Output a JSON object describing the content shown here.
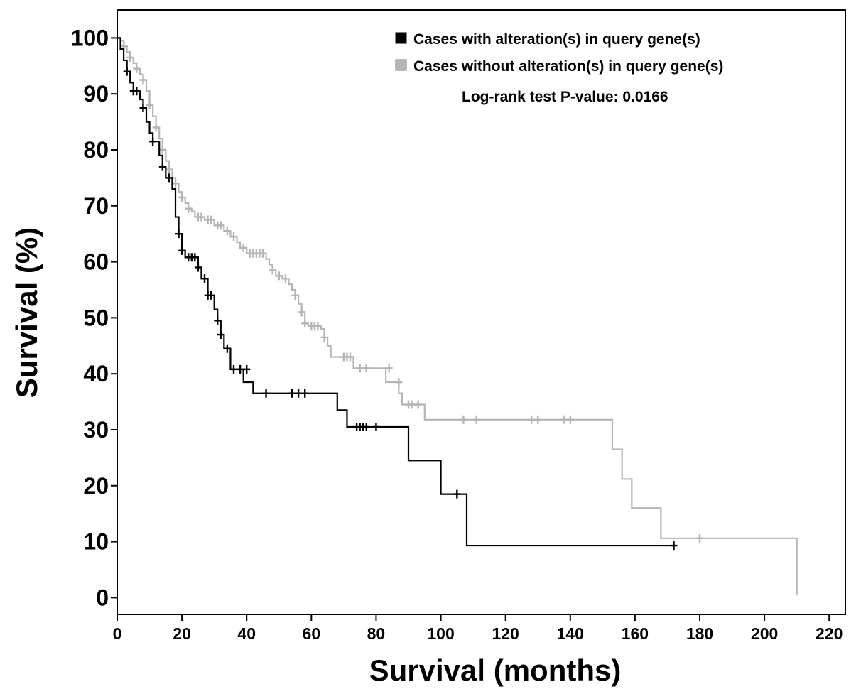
{
  "chart_data": {
    "type": "line",
    "subtype": "kaplan-meier",
    "xlabel": "Survival (months)",
    "ylabel": "Survival (%)",
    "xlim": [
      0,
      225
    ],
    "ylim": [
      -3,
      105
    ],
    "xticks": [
      0,
      20,
      40,
      60,
      80,
      100,
      120,
      140,
      160,
      180,
      200,
      220
    ],
    "yticks": [
      0,
      10,
      20,
      30,
      40,
      50,
      60,
      70,
      80,
      90,
      100
    ],
    "grid": false,
    "legend_position": "top-right",
    "annotation": "Log-rank test P-value: 0.0166",
    "series": [
      {
        "name": "Cases with alteration(s) in query gene(s)",
        "color": "#000000",
        "steps": [
          [
            0,
            100
          ],
          [
            1,
            98
          ],
          [
            2,
            96
          ],
          [
            3,
            94
          ],
          [
            4,
            92
          ],
          [
            5,
            90.5
          ],
          [
            7,
            89
          ],
          [
            8,
            87.5
          ],
          [
            9,
            85
          ],
          [
            10,
            83
          ],
          [
            11,
            81.5
          ],
          [
            13,
            79
          ],
          [
            14,
            77
          ],
          [
            15,
            75
          ],
          [
            17,
            73
          ],
          [
            18,
            68
          ],
          [
            19,
            65
          ],
          [
            20,
            62
          ],
          [
            21,
            60.8
          ],
          [
            25,
            59
          ],
          [
            26,
            57
          ],
          [
            28,
            54
          ],
          [
            30,
            51.5
          ],
          [
            31,
            49.5
          ],
          [
            32,
            47
          ],
          [
            33,
            44.5
          ],
          [
            35,
            40.8
          ],
          [
            39,
            38.5
          ],
          [
            42,
            36.5
          ],
          [
            68,
            33.5
          ],
          [
            71,
            30.5
          ],
          [
            90,
            24.5
          ],
          [
            100,
            18.5
          ],
          [
            108,
            9.3
          ]
        ],
        "end_x": 172,
        "censored": [
          [
            3,
            94
          ],
          [
            5,
            90.5
          ],
          [
            6,
            90.5
          ],
          [
            8,
            87.5
          ],
          [
            11,
            81.5
          ],
          [
            14,
            77
          ],
          [
            16,
            75
          ],
          [
            19,
            65
          ],
          [
            20,
            62
          ],
          [
            22,
            60.8
          ],
          [
            23,
            60.8
          ],
          [
            24,
            60.8
          ],
          [
            25,
            59
          ],
          [
            27,
            57
          ],
          [
            28,
            54
          ],
          [
            29,
            54
          ],
          [
            31,
            49.5
          ],
          [
            32,
            47
          ],
          [
            34,
            44.5
          ],
          [
            36,
            40.8
          ],
          [
            38,
            40.8
          ],
          [
            40,
            40.8
          ],
          [
            46,
            36.5
          ],
          [
            54,
            36.5
          ],
          [
            56,
            36.5
          ],
          [
            58,
            36.5
          ],
          [
            74,
            30.5
          ],
          [
            75,
            30.5
          ],
          [
            76,
            30.5
          ],
          [
            77,
            30.5
          ],
          [
            80,
            30.5
          ],
          [
            105,
            18.5
          ],
          [
            172,
            9.3
          ]
        ]
      },
      {
        "name": "Cases without alteration(s) in query gene(s)",
        "color": "#b5b5b5",
        "steps": [
          [
            0,
            100
          ],
          [
            1,
            99.5
          ],
          [
            2,
            98.5
          ],
          [
            3,
            97.5
          ],
          [
            4,
            96.5
          ],
          [
            5,
            95.5
          ],
          [
            6,
            94.5
          ],
          [
            7,
            93.5
          ],
          [
            8,
            92.5
          ],
          [
            9,
            90.5
          ],
          [
            10,
            88
          ],
          [
            11,
            86
          ],
          [
            12,
            84
          ],
          [
            13,
            82
          ],
          [
            14,
            80
          ],
          [
            15,
            78
          ],
          [
            16,
            76.5
          ],
          [
            17,
            75
          ],
          [
            18,
            74
          ],
          [
            19,
            72.5
          ],
          [
            20,
            71.5
          ],
          [
            21,
            70.5
          ],
          [
            22,
            69.5
          ],
          [
            23,
            69
          ],
          [
            24,
            68
          ],
          [
            27,
            67.5
          ],
          [
            30,
            66.5
          ],
          [
            33,
            65.5
          ],
          [
            35,
            64.5
          ],
          [
            37,
            63.5
          ],
          [
            38,
            62.5
          ],
          [
            40,
            61.5
          ],
          [
            46,
            60.5
          ],
          [
            47,
            59.5
          ],
          [
            48,
            58.5
          ],
          [
            49,
            57.5
          ],
          [
            51,
            57
          ],
          [
            53,
            56
          ],
          [
            54,
            55
          ],
          [
            55,
            54
          ],
          [
            56,
            52.5
          ],
          [
            57,
            51
          ],
          [
            58,
            49
          ],
          [
            59,
            48.5
          ],
          [
            63,
            48
          ],
          [
            64,
            46.5
          ],
          [
            65,
            45
          ],
          [
            66,
            43
          ],
          [
            73,
            41
          ],
          [
            83,
            38.5
          ],
          [
            87,
            36.5
          ],
          [
            88,
            34.5
          ],
          [
            95,
            31.8
          ],
          [
            153,
            26.5
          ],
          [
            156,
            21.2
          ],
          [
            159,
            16
          ],
          [
            168,
            10.6
          ],
          [
            210,
            0.5
          ]
        ],
        "end_x": 210,
        "censored": [
          [
            2,
            98.5
          ],
          [
            4,
            96.5
          ],
          [
            6,
            94.5
          ],
          [
            8,
            92.5
          ],
          [
            10,
            88
          ],
          [
            12,
            84
          ],
          [
            14,
            80
          ],
          [
            16,
            76.5
          ],
          [
            18,
            74
          ],
          [
            20,
            71.5
          ],
          [
            22,
            69.5
          ],
          [
            25,
            68
          ],
          [
            26,
            68
          ],
          [
            28,
            67.5
          ],
          [
            29,
            67.5
          ],
          [
            31,
            66.5
          ],
          [
            32,
            66.5
          ],
          [
            34,
            65.5
          ],
          [
            36,
            64.5
          ],
          [
            39,
            62.5
          ],
          [
            41,
            61.5
          ],
          [
            42,
            61.5
          ],
          [
            43,
            61.5
          ],
          [
            44,
            61.5
          ],
          [
            45,
            61.5
          ],
          [
            48,
            58.5
          ],
          [
            50,
            57.5
          ],
          [
            52,
            57
          ],
          [
            55,
            54
          ],
          [
            57,
            51
          ],
          [
            58,
            49
          ],
          [
            60,
            48.5
          ],
          [
            61,
            48.5
          ],
          [
            62,
            48.5
          ],
          [
            64,
            46.5
          ],
          [
            70,
            43
          ],
          [
            71,
            43
          ],
          [
            72,
            43
          ],
          [
            75,
            41
          ],
          [
            77,
            41
          ],
          [
            84,
            41
          ],
          [
            87,
            38.5
          ],
          [
            90,
            34.5
          ],
          [
            91,
            34.5
          ],
          [
            93,
            34.5
          ],
          [
            107,
            31.8
          ],
          [
            111,
            31.8
          ],
          [
            128,
            31.8
          ],
          [
            130,
            31.8
          ],
          [
            138,
            31.8
          ],
          [
            140,
            31.8
          ],
          [
            180,
            10.6
          ]
        ]
      }
    ]
  }
}
